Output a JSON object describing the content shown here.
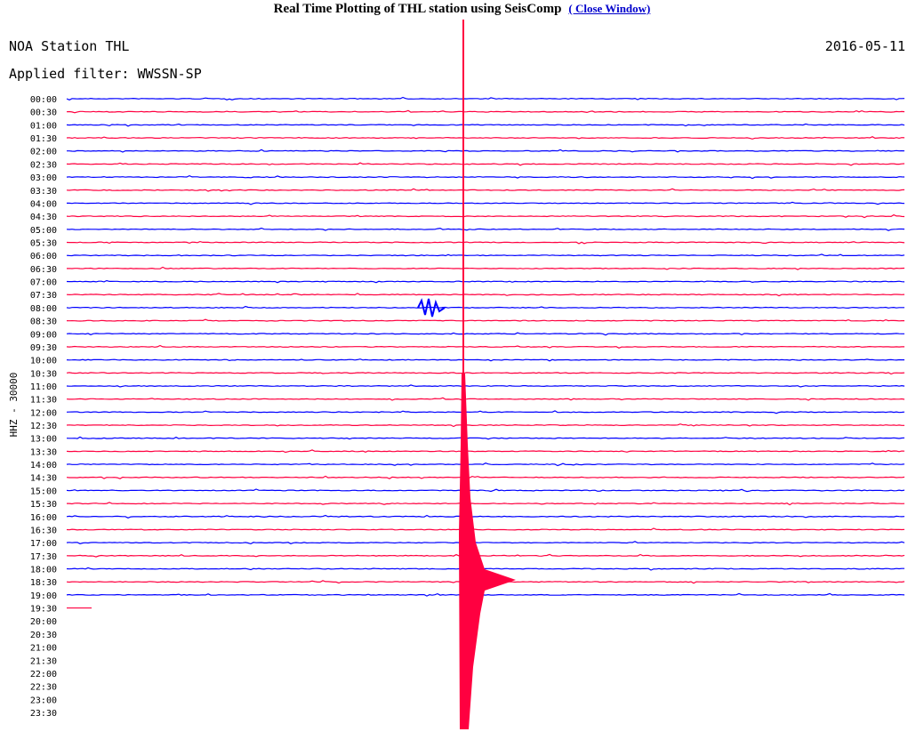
{
  "header": {
    "title": "Real Time Plotting of THL station using SeisComp",
    "link": "( Close Window)"
  },
  "plot": {
    "station": "NOA Station THL",
    "date": "2016-05-11",
    "filter": "Applied filter: WWSSN-SP",
    "channel": "HHZ - 30000",
    "rows": [
      "00:00",
      "00:30",
      "01:00",
      "01:30",
      "02:00",
      "02:30",
      "03:00",
      "03:30",
      "04:00",
      "04:30",
      "05:00",
      "05:30",
      "06:00",
      "06:30",
      "07:00",
      "07:30",
      "08:00",
      "08:30",
      "09:00",
      "09:30",
      "10:00",
      "10:30",
      "11:00",
      "11:30",
      "12:00",
      "12:30",
      "13:00",
      "13:30",
      "14:00",
      "14:30",
      "15:00",
      "15:30",
      "16:00",
      "16:30",
      "17:00",
      "17:30",
      "18:00",
      "18:30",
      "19:00",
      "19:30",
      "20:00",
      "20:30",
      "21:00",
      "21:30",
      "22:00",
      "22:30",
      "23:00",
      "23:30"
    ]
  }
}
